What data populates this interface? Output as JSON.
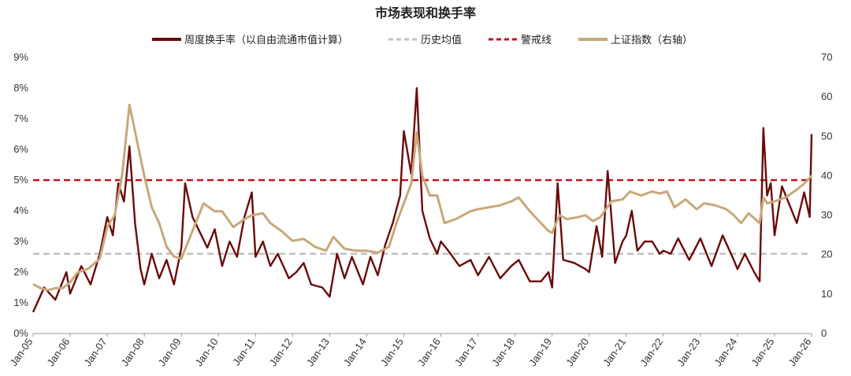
{
  "chart_data": {
    "type": "line",
    "title": "市场表现和换手率",
    "colors": {
      "turnover": "#6b0a0a",
      "history_avg": "#c0c0c0",
      "warning": "#c8101a",
      "index": "#c8a87a"
    },
    "legend": {
      "placement": "top-center",
      "items": [
        {
          "key": "turnover",
          "label": "周度换手率（以自由流通市值计算）"
        },
        {
          "key": "history_avg",
          "label": "历史均值"
        },
        {
          "key": "warning",
          "label": "警戒线"
        },
        {
          "key": "index",
          "label": "上证指数（右轴）"
        }
      ]
    },
    "x_ticks": [
      "Jan-05",
      "Jan-06",
      "Jan-07",
      "Jan-08",
      "Jan-09",
      "Jan-10",
      "Jan-11",
      "Jan-12",
      "Jan-13",
      "Jan-14",
      "Jan-15",
      "Jan-16",
      "Jan-17",
      "Jan-18",
      "Jan-19",
      "Jan-20",
      "Jan-21",
      "Jan-22",
      "Jan-23",
      "Jan-24",
      "Jan-25",
      "Jan-26"
    ],
    "y_left": {
      "ylim": [
        0,
        9
      ],
      "ticks": [
        "0%",
        "1%",
        "2%",
        "3%",
        "4%",
        "5%",
        "6%",
        "7%",
        "8%",
        "9%"
      ]
    },
    "y_right": {
      "ylim": [
        0,
        70
      ],
      "ticks": [
        "0",
        "10",
        "20",
        "30",
        "40",
        "50",
        "60",
        "70"
      ]
    },
    "reference_lines": {
      "history_avg_pct": 2.6,
      "warning_pct": 5.0
    },
    "series": [
      {
        "key": "turnover",
        "axis": "left",
        "x": [
          2005.0,
          2005.3,
          2005.6,
          2005.9,
          2006.0,
          2006.3,
          2006.55,
          2006.8,
          2007.0,
          2007.15,
          2007.3,
          2007.45,
          2007.6,
          2007.75,
          2007.9,
          2008.0,
          2008.2,
          2008.4,
          2008.6,
          2008.8,
          2009.0,
          2009.1,
          2009.3,
          2009.5,
          2009.7,
          2009.9,
          2010.1,
          2010.3,
          2010.5,
          2010.7,
          2010.9,
          2011.0,
          2011.2,
          2011.4,
          2011.6,
          2011.9,
          2012.1,
          2012.3,
          2012.5,
          2012.8,
          2013.0,
          2013.2,
          2013.4,
          2013.6,
          2013.9,
          2014.1,
          2014.3,
          2014.5,
          2014.7,
          2014.9,
          2015.0,
          2015.2,
          2015.35,
          2015.5,
          2015.7,
          2015.9,
          2016.0,
          2016.2,
          2016.5,
          2016.8,
          2017.0,
          2017.3,
          2017.6,
          2017.9,
          2018.1,
          2018.4,
          2018.7,
          2018.9,
          2019.0,
          2019.15,
          2019.3,
          2019.6,
          2019.9,
          2020.0,
          2020.2,
          2020.35,
          2020.5,
          2020.7,
          2020.9,
          2021.0,
          2021.15,
          2021.3,
          2021.5,
          2021.7,
          2021.9,
          2022.0,
          2022.2,
          2022.4,
          2022.7,
          2023.0,
          2023.3,
          2023.6,
          2023.9,
          2024.0,
          2024.2,
          2024.45,
          2024.6,
          2024.7,
          2024.8,
          2024.9,
          2025.0,
          2025.2,
          2025.4,
          2025.6,
          2025.8,
          2025.95,
          2026.0
        ],
        "values": [
          0.7,
          1.5,
          1.1,
          2.0,
          1.3,
          2.2,
          1.6,
          2.6,
          3.8,
          3.2,
          4.9,
          4.3,
          6.1,
          3.6,
          2.1,
          1.6,
          2.6,
          1.8,
          2.4,
          1.6,
          2.8,
          4.9,
          3.8,
          3.3,
          2.8,
          3.4,
          2.2,
          3.0,
          2.5,
          3.8,
          4.6,
          2.5,
          3.0,
          2.2,
          2.6,
          1.8,
          2.0,
          2.3,
          1.6,
          1.5,
          1.2,
          2.6,
          1.8,
          2.5,
          1.6,
          2.5,
          1.9,
          2.9,
          3.6,
          4.5,
          6.6,
          5.2,
          8.0,
          4.0,
          3.1,
          2.6,
          3.0,
          2.7,
          2.2,
          2.4,
          1.9,
          2.5,
          1.8,
          2.2,
          2.4,
          1.7,
          1.7,
          2.0,
          1.5,
          4.9,
          2.4,
          2.3,
          2.1,
          2.0,
          3.5,
          2.5,
          5.3,
          2.3,
          3.0,
          3.2,
          4.0,
          2.7,
          3.0,
          3.0,
          2.6,
          2.7,
          2.6,
          3.1,
          2.4,
          3.1,
          2.2,
          3.2,
          2.4,
          2.1,
          2.6,
          2.0,
          1.7,
          6.7,
          4.5,
          4.9,
          3.2,
          4.8,
          4.2,
          3.6,
          4.6,
          3.8,
          6.5
        ]
      },
      {
        "key": "index",
        "axis": "right",
        "x": [
          2005.0,
          2005.2,
          2005.4,
          2005.6,
          2005.8,
          2006.0,
          2006.2,
          2006.5,
          2006.8,
          2007.0,
          2007.2,
          2007.4,
          2007.6,
          2007.8,
          2008.0,
          2008.2,
          2008.4,
          2008.6,
          2008.8,
          2009.0,
          2009.3,
          2009.6,
          2009.9,
          2010.1,
          2010.4,
          2010.7,
          2010.9,
          2011.2,
          2011.4,
          2011.7,
          2012.0,
          2012.3,
          2012.6,
          2012.9,
          2013.1,
          2013.4,
          2013.7,
          2014.0,
          2014.3,
          2014.6,
          2014.8,
          2015.0,
          2015.2,
          2015.35,
          2015.5,
          2015.7,
          2015.9,
          2016.1,
          2016.4,
          2016.8,
          2017.0,
          2017.3,
          2017.6,
          2017.9,
          2018.1,
          2018.4,
          2018.7,
          2018.9,
          2019.0,
          2019.2,
          2019.4,
          2019.7,
          2019.9,
          2020.1,
          2020.3,
          2020.6,
          2020.9,
          2021.1,
          2021.4,
          2021.7,
          2021.9,
          2022.1,
          2022.3,
          2022.6,
          2022.9,
          2023.1,
          2023.4,
          2023.7,
          2023.9,
          2024.1,
          2024.3,
          2024.6,
          2024.7,
          2024.8,
          2025.0,
          2025.3,
          2025.6,
          2025.8,
          2026.0
        ],
        "values": [
          12.5,
          11.5,
          11.0,
          11.5,
          11.5,
          13.0,
          15.5,
          16.5,
          19.0,
          27.0,
          30.0,
          40.0,
          58.0,
          49.0,
          40.0,
          32.0,
          28.0,
          22.0,
          19.5,
          19.0,
          26.0,
          33.0,
          31.0,
          31.0,
          27.0,
          29.0,
          30.0,
          30.5,
          28.0,
          26.0,
          23.5,
          24.0,
          22.0,
          21.0,
          24.5,
          21.5,
          21.0,
          21.0,
          20.5,
          22.0,
          28.0,
          33.0,
          38.0,
          51.0,
          40.0,
          35.0,
          35.0,
          28.0,
          29.0,
          31.0,
          31.5,
          32.0,
          32.5,
          33.5,
          34.5,
          31.0,
          28.0,
          26.0,
          25.5,
          30.0,
          29.0,
          29.5,
          30.0,
          28.5,
          29.5,
          33.5,
          34.0,
          36.0,
          35.0,
          36.0,
          35.5,
          36.0,
          32.0,
          34.0,
          31.5,
          33.0,
          32.5,
          31.5,
          30.0,
          28.0,
          30.5,
          28.0,
          34.5,
          33.0,
          33.5,
          34.5,
          36.5,
          38.0,
          40.0
        ]
      }
    ]
  }
}
